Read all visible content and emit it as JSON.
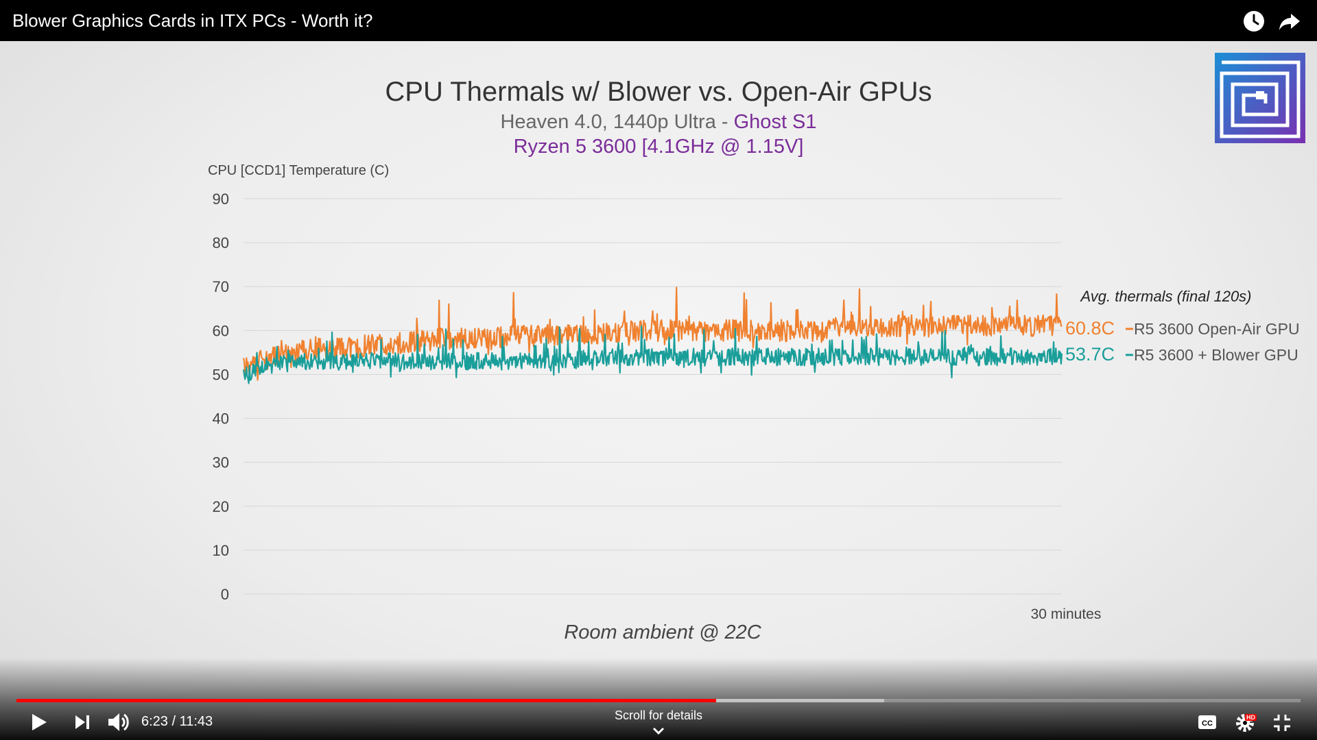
{
  "video": {
    "title": "Blower Graphics Cards in ITX PCs - Worth it?",
    "top_icons": [
      "clock-icon",
      "share-icon"
    ]
  },
  "chart_data": {
    "type": "line",
    "title": "CPU Thermals w/ Blower vs. Open-Air GPUs",
    "subtitle_prefix": "Heaven 4.0, 1440p Ultra - ",
    "subtitle_highlight": "Ghost S1",
    "subtitle2": "Ryzen 5 3600 [4.1GHz @ 1.15V]",
    "ylabel": "CPU [CCD1] Temperature (C)",
    "xlabel": "30 minutes",
    "ylim": [
      0,
      90
    ],
    "yticks": [
      "90",
      "80",
      "70",
      "60",
      "50",
      "40",
      "30",
      "20",
      "10",
      "0"
    ],
    "xlim_minutes": [
      0,
      30
    ],
    "grid": true,
    "annotation": "Room ambient @ 22C",
    "legend_title": "Avg. thermals (final 120s)",
    "series": [
      {
        "name": "R5 3600 Open-Air GPU",
        "avg_label": "60.8C",
        "color": "#f0812f",
        "x_minutes": [
          0,
          1,
          2,
          3,
          4,
          5,
          6,
          7,
          8,
          9,
          10,
          11,
          12,
          13,
          14,
          15,
          16,
          17,
          18,
          19,
          20,
          21,
          22,
          23,
          24,
          25,
          26,
          27,
          28,
          29,
          30
        ],
        "values": [
          52,
          54,
          55,
          56,
          56,
          57,
          57,
          58,
          58,
          58,
          59,
          59,
          59,
          59,
          60,
          60,
          60,
          60,
          60,
          60,
          60,
          60,
          61,
          61,
          61,
          61,
          61,
          61,
          61,
          61,
          61
        ]
      },
      {
        "name": "R5 3600 + Blower GPU",
        "avg_label": "53.7C",
        "color": "#1a9e9a",
        "x_minutes": [
          0,
          1,
          2,
          3,
          4,
          5,
          6,
          7,
          8,
          9,
          10,
          11,
          12,
          13,
          14,
          15,
          16,
          17,
          18,
          19,
          20,
          21,
          22,
          23,
          24,
          25,
          26,
          27,
          28,
          29,
          30
        ],
        "values": [
          50,
          52,
          53,
          53,
          53,
          53,
          53,
          53,
          53,
          53,
          53,
          53,
          53,
          54,
          54,
          54,
          54,
          54,
          54,
          54,
          54,
          54,
          54,
          54,
          54,
          54,
          54,
          54,
          54,
          54,
          54
        ]
      }
    ]
  },
  "player": {
    "time": "6:23 / 11:43",
    "played_fraction": 0.545,
    "buffered_fraction": 0.676,
    "scroll_hint": "Scroll for details",
    "hd_badge": "HD",
    "controls": [
      "play-icon",
      "next-icon",
      "volume-icon",
      "closed-captions-icon",
      "settings-icon",
      "exit-fullscreen-icon"
    ]
  }
}
